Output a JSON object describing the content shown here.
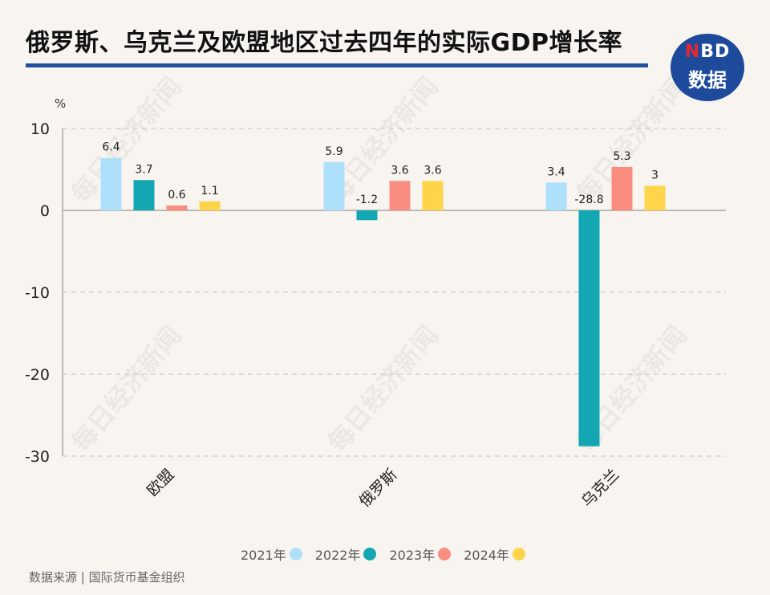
{
  "header": {
    "title": "俄罗斯、乌克兰及欧盟地区过去四年的实际GDP增长率",
    "logo_top": "BD",
    "logo_top_accent": "N",
    "logo_bottom": "数据"
  },
  "watermark_text": "每日经济新闻",
  "footer": {
    "source": "数据来源 | 国际货币基金组织"
  },
  "colors": {
    "title_rule": "#1f4e9a",
    "logo_bg": "#1e4a9c",
    "logo_accent": "#e02a2f"
  },
  "chart_data": {
    "type": "bar",
    "title": "俄罗斯、乌克兰及欧盟地区过去四年的实际GDP增长率",
    "ylabel": "%",
    "xlabel": "",
    "ylim": [
      -30,
      10
    ],
    "yticks": [
      10,
      0,
      -10,
      -20,
      -30
    ],
    "grid": true,
    "legend_position": "bottom-center",
    "categories": [
      "欧盟",
      "俄罗斯",
      "乌克兰"
    ],
    "series": [
      {
        "name": "2021年",
        "color": "#aee0fb",
        "values": [
          6.4,
          5.9,
          3.4
        ],
        "labels": [
          "6.4",
          "5.9",
          "3.4"
        ]
      },
      {
        "name": "2022年",
        "color": "#12a7b3",
        "values": [
          3.7,
          -1.2,
          -28.8
        ],
        "labels": [
          "3.7",
          "-1.2",
          "-28.8"
        ]
      },
      {
        "name": "2023年",
        "color": "#f98e80",
        "values": [
          0.6,
          3.6,
          5.3
        ],
        "labels": [
          "0.6",
          "3.6",
          "5.3"
        ]
      },
      {
        "name": "2024年",
        "color": "#fdd44a",
        "values": [
          1.1,
          3.6,
          3.0
        ],
        "labels": [
          "1.1",
          "3.6",
          "3"
        ]
      }
    ]
  }
}
